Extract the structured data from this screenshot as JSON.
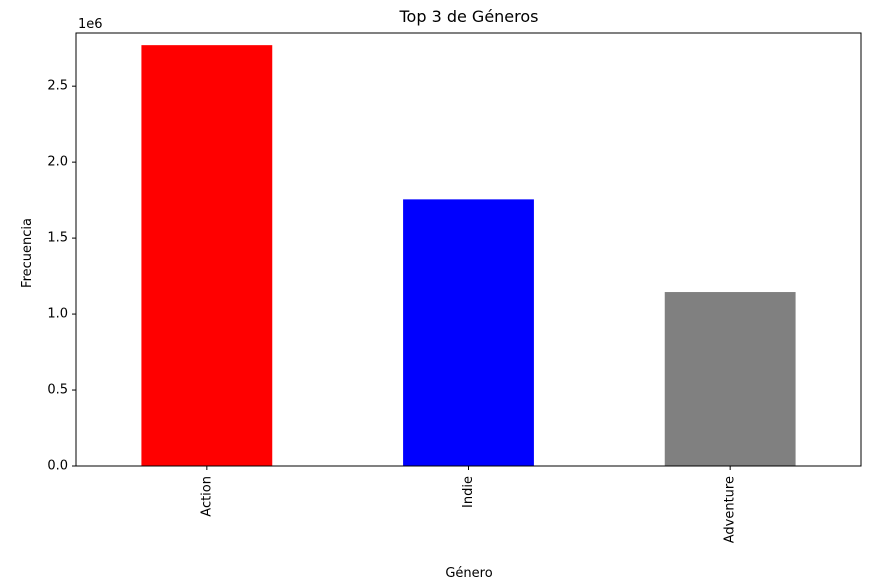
{
  "chart_data": {
    "type": "bar",
    "title": "Top 3 de Géneros",
    "xlabel": "Género",
    "ylabel": "Frecuencia",
    "y_multiplier_label": "1e6",
    "categories": [
      "Action",
      "Indie",
      "Adventure"
    ],
    "values": [
      2770000,
      1755000,
      1145000
    ],
    "colors": [
      "#ff0000",
      "#0000ff",
      "#808080"
    ],
    "ylim": [
      0,
      2850000
    ],
    "yticks": [
      0,
      500000,
      1000000,
      1500000,
      2000000,
      2500000
    ],
    "ytick_labels": [
      "0.0",
      "0.5",
      "1.0",
      "1.5",
      "2.0",
      "2.5"
    ],
    "grid": false,
    "legend": "none"
  }
}
